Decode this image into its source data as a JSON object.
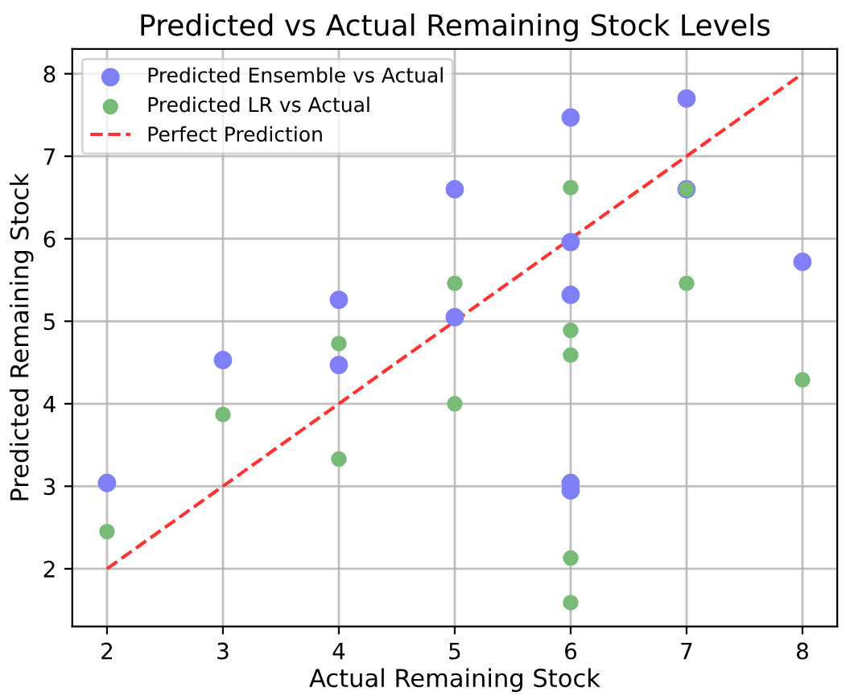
{
  "chart_data": {
    "type": "scatter",
    "title": "Predicted vs Actual Remaining Stock Levels",
    "xlabel": "Actual Remaining Stock",
    "ylabel": "Predicted Remaining Stock",
    "series": [
      {
        "name": "Predicted Ensemble vs Actual",
        "color": "#7f7ff7",
        "x": [
          2,
          3,
          4,
          4,
          5,
          5,
          6,
          6,
          6,
          6,
          6,
          7,
          7,
          8
        ],
        "values": [
          3.04,
          4.53,
          5.26,
          4.47,
          6.6,
          5.05,
          7.47,
          5.96,
          5.32,
          3.04,
          2.95,
          7.7,
          6.6,
          5.72
        ]
      },
      {
        "name": "Predicted LR vs Actual",
        "color": "#78bb78",
        "x": [
          2,
          3,
          4,
          4,
          5,
          5,
          6,
          6,
          6,
          6,
          6,
          7,
          7,
          8
        ],
        "values": [
          2.45,
          3.87,
          4.73,
          3.33,
          5.46,
          4.0,
          6.62,
          4.89,
          4.59,
          2.13,
          1.59,
          6.6,
          5.46,
          4.29
        ]
      },
      {
        "name": "Perfect Prediction",
        "type": "line",
        "line_style": "dashed",
        "marker": "none",
        "color": "#ff3333",
        "x": [
          2,
          8
        ],
        "values": [
          2,
          8
        ]
      }
    ],
    "marker": "circle",
    "xlim": [
      1.7,
      8.3
    ],
    "ylim": [
      1.3,
      8.3
    ],
    "xticks": [
      2,
      3,
      4,
      5,
      6,
      7,
      8
    ],
    "yticks": [
      2,
      3,
      4,
      5,
      6,
      7,
      8
    ],
    "grid": true,
    "legend": "top left"
  }
}
